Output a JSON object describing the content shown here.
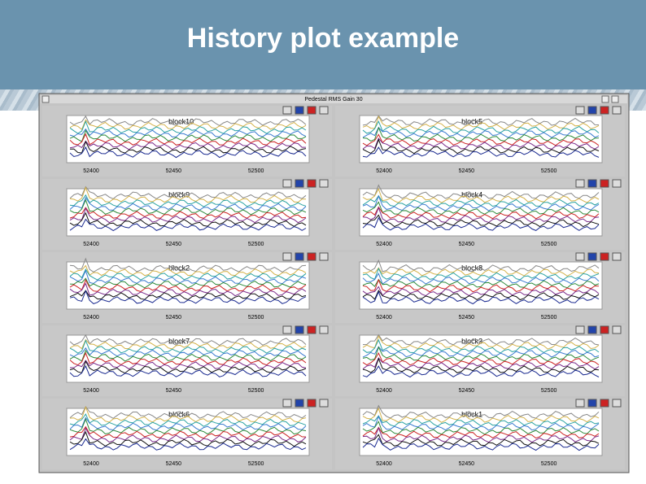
{
  "header": {
    "title": "History plot example"
  },
  "window": {
    "title": "Pedestal RMS Gain 30"
  },
  "panels": [
    {
      "label": "block10",
      "xticks": [
        "52400",
        "52450",
        "52500"
      ]
    },
    {
      "label": "block5",
      "xticks": [
        "52400",
        "52450",
        "52500"
      ]
    },
    {
      "label": "block9",
      "xticks": [
        "52400",
        "52450",
        "52500"
      ]
    },
    {
      "label": "block4",
      "xticks": [
        "52400",
        "52450",
        "52500"
      ]
    },
    {
      "label": "block2",
      "xticks": [
        "52400",
        "52450",
        "52500"
      ]
    },
    {
      "label": "block8",
      "xticks": [
        "52400",
        "52450",
        "52500"
      ]
    },
    {
      "label": "block7",
      "xticks": [
        "52400",
        "52450",
        "52500"
      ]
    },
    {
      "label": "block3",
      "xticks": [
        "52400",
        "52450",
        "52500"
      ]
    },
    {
      "label": "block6",
      "xticks": [
        "52400",
        "52450",
        "52500"
      ]
    },
    {
      "label": "block1",
      "xticks": [
        "52400",
        "52450",
        "52500"
      ]
    }
  ]
}
